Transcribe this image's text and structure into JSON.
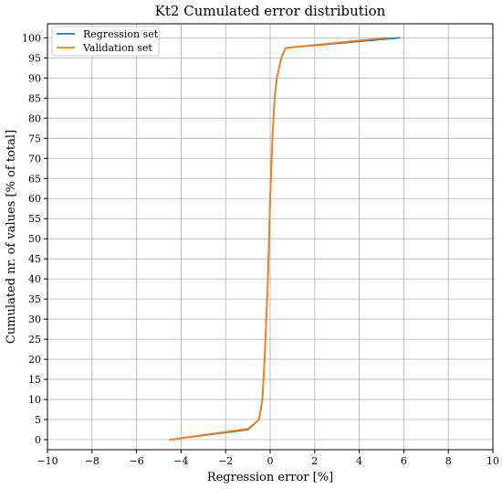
{
  "chart_data": {
    "type": "line",
    "title": "Kt2 Cumulated error distribution",
    "xlabel": "Regression error [%]",
    "ylabel": "Cumulated nr. of values [% of total]",
    "xlim": [
      -10,
      10
    ],
    "ylim": [
      -2.5,
      103.5
    ],
    "xticks": [
      -10,
      -8,
      -6,
      -4,
      -2,
      0,
      2,
      4,
      6,
      8,
      10
    ],
    "xtick_labels": [
      "−10",
      "−8",
      "−6",
      "−4",
      "−2",
      "0",
      "2",
      "4",
      "6",
      "8",
      "10"
    ],
    "yticks": [
      0,
      5,
      10,
      15,
      20,
      25,
      30,
      35,
      40,
      45,
      50,
      55,
      60,
      65,
      70,
      75,
      80,
      85,
      90,
      95,
      100
    ],
    "ytick_labels": [
      "0",
      "5",
      "10",
      "15",
      "20",
      "25",
      "30",
      "35",
      "40",
      "45",
      "50",
      "55",
      "60",
      "65",
      "70",
      "75",
      "80",
      "85",
      "90",
      "95",
      "100"
    ],
    "grid": true,
    "legend_position": "top-left",
    "series": [
      {
        "name": "Regression set",
        "color": "#1f77b4",
        "x": [
          -4.5,
          -1.0,
          -0.5,
          -0.35,
          -0.25,
          -0.1,
          0.0,
          0.1,
          0.2,
          0.3,
          0.5,
          0.7,
          5.8
        ],
        "y": [
          0,
          2.5,
          5,
          10,
          20,
          40,
          60,
          75,
          85,
          90,
          95,
          97.5,
          100
        ]
      },
      {
        "name": "Validation set",
        "color": "#ff7f0e",
        "x": [
          -4.5,
          -1.0,
          -0.5,
          -0.35,
          -0.25,
          -0.1,
          0.0,
          0.1,
          0.2,
          0.3,
          0.5,
          0.7,
          5.2
        ],
        "y": [
          0,
          2.7,
          5,
          10,
          20,
          40,
          60,
          75,
          85,
          90,
          95,
          97.5,
          100
        ]
      }
    ]
  }
}
